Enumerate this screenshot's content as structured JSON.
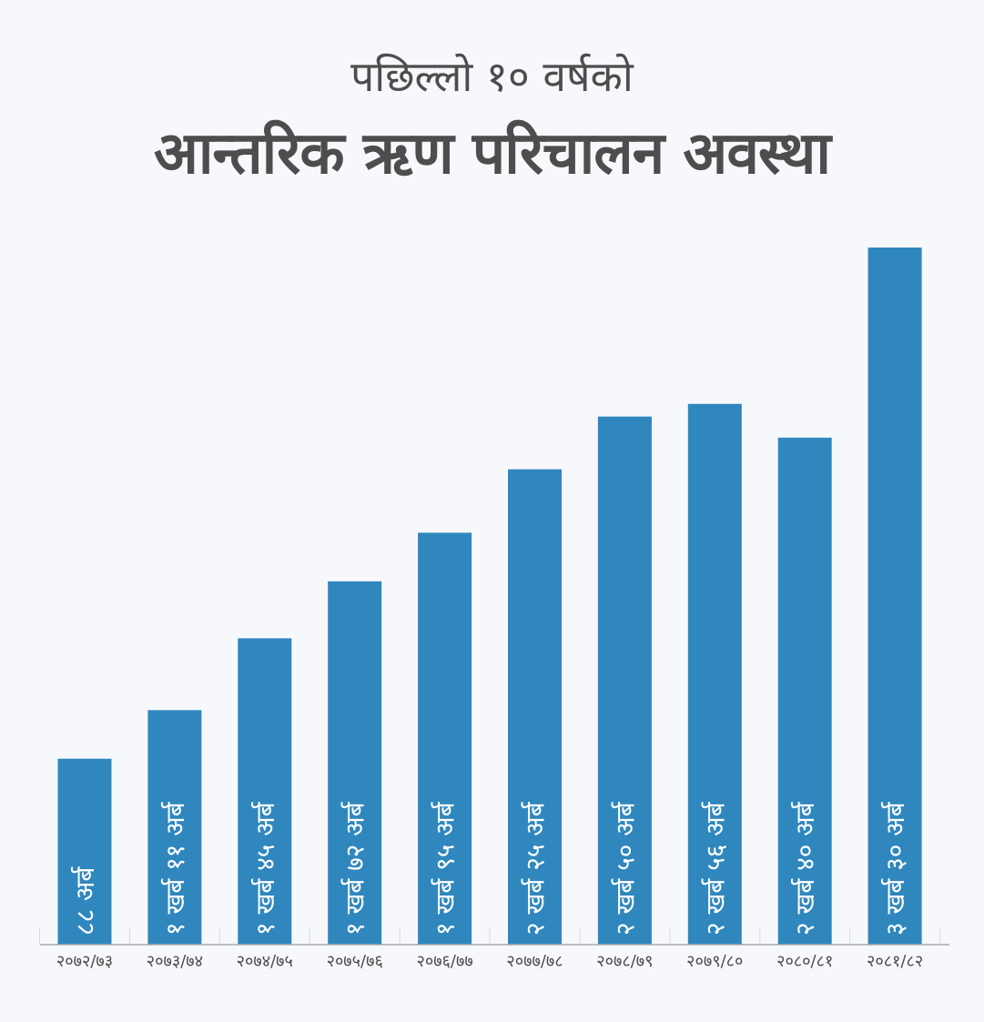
{
  "header": {
    "subtitle": "पछिल्लो १० वर्षको",
    "title": "आन्तरिक ऋण परिचालन अवस्था"
  },
  "colors": {
    "bar": "#2f87be",
    "bar_label": "#ffffff",
    "text": "#4d4d4d",
    "axis": "#a9a9a9",
    "background": "#f7f8fc"
  },
  "chart_data": {
    "type": "bar",
    "title": "आन्तरिक ऋण परिचालन अवस्था",
    "subtitle": "पछिल्लो १० वर्षको",
    "categories": [
      "२०७२/७३",
      "२०७३/७४",
      "२०७४/७५",
      "२०७५/७६",
      "२०७६/७७",
      "२०७७/७८",
      "२०७८/७९",
      "२०७९/८०",
      "२०८०/८१",
      "२०८१/८२"
    ],
    "values": [
      88,
      111,
      145,
      172,
      195,
      225,
      250,
      256,
      240,
      330
    ],
    "value_unit": "अर्ब",
    "data_labels": [
      "८८ अर्ब",
      "१ खर्ब ११ अर्ब",
      "१ खर्ब ४५ अर्ब",
      "१ खर्ब ७२ अर्ब",
      "१ खर्ब ९५ अर्ब",
      "२ खर्ब २५ अर्ब",
      "२ खर्ब ५० अर्ब",
      "२ खर्ब ५६ अर्ब",
      "२ खर्ब ४० अर्ब",
      "३ खर्ब ३० अर्ब"
    ],
    "xlabel": "",
    "ylabel": "",
    "ylim": [
      0,
      330
    ],
    "grid": false,
    "legend": "none"
  }
}
